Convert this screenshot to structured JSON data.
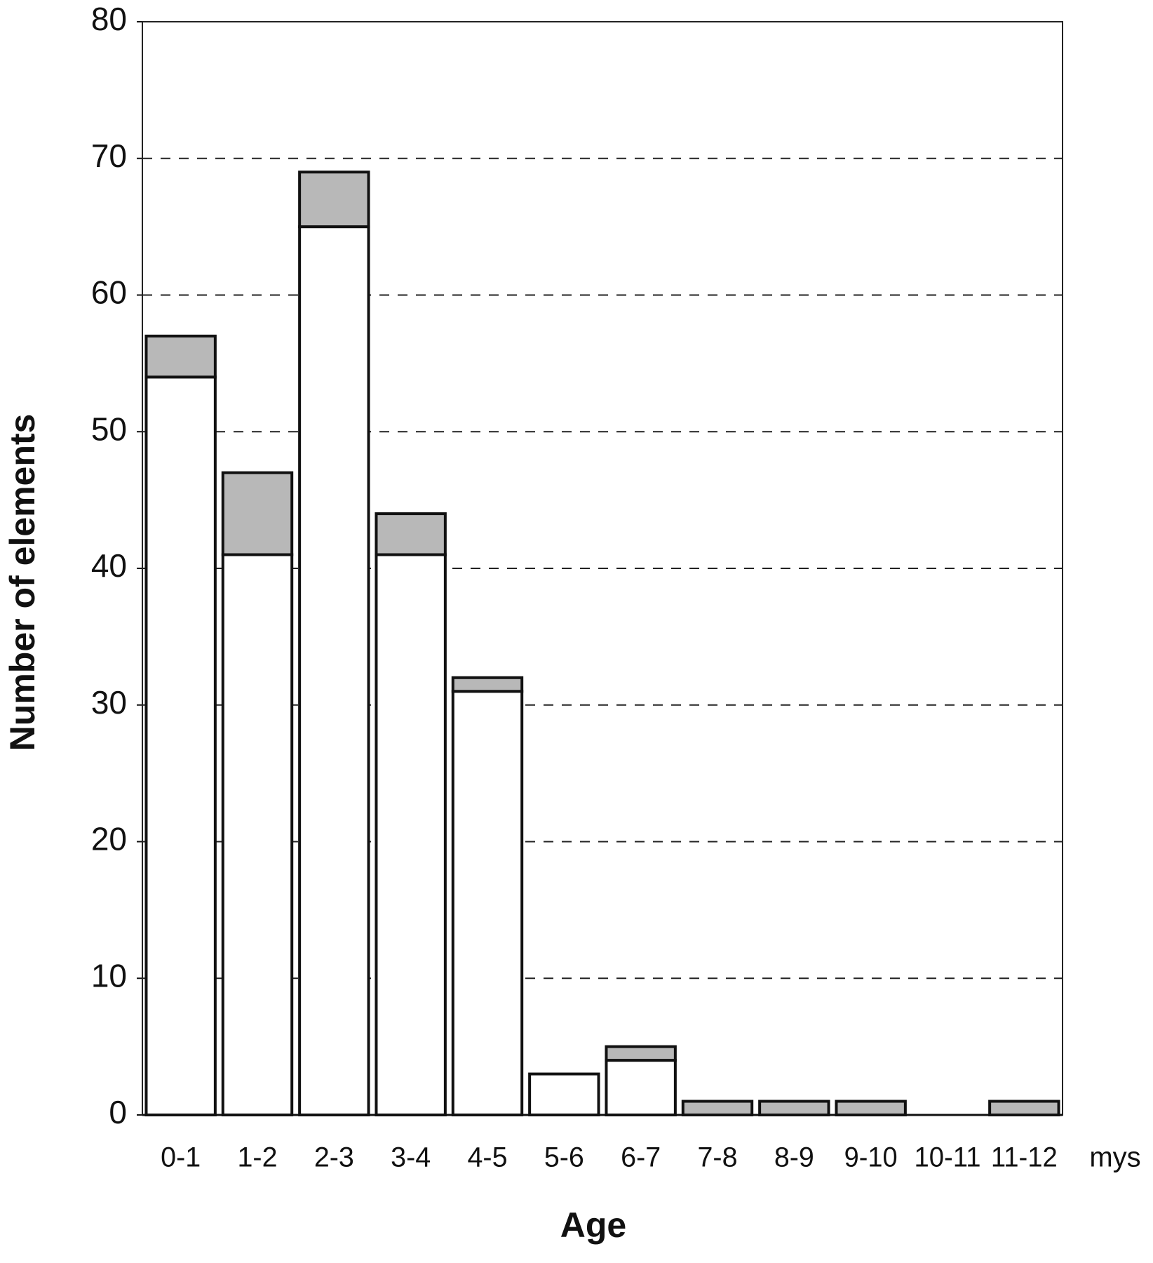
{
  "chart_data": {
    "type": "stacked-bar",
    "y_label": "Number of elements",
    "x_label": "Age",
    "x_unit": "mys",
    "categories": [
      "0-1",
      "1-2",
      "2-3",
      "3-4",
      "4-5",
      "5-6",
      "6-7",
      "7-8",
      "8-9",
      "9-10",
      "10-11",
      "11-12"
    ],
    "series": [
      {
        "color": "#ffffff",
        "values": [
          54,
          41,
          65,
          41,
          31,
          3,
          4,
          0,
          0,
          0,
          0,
          0
        ]
      },
      {
        "color": "#b8b8b8",
        "values": [
          3,
          6,
          4,
          3,
          1,
          0,
          1,
          1,
          1,
          1,
          0,
          1
        ]
      }
    ],
    "ylim": [
      0,
      80
    ],
    "yticks": [
      0,
      10,
      20,
      30,
      40,
      50,
      60,
      70,
      80
    ],
    "grid": true
  }
}
